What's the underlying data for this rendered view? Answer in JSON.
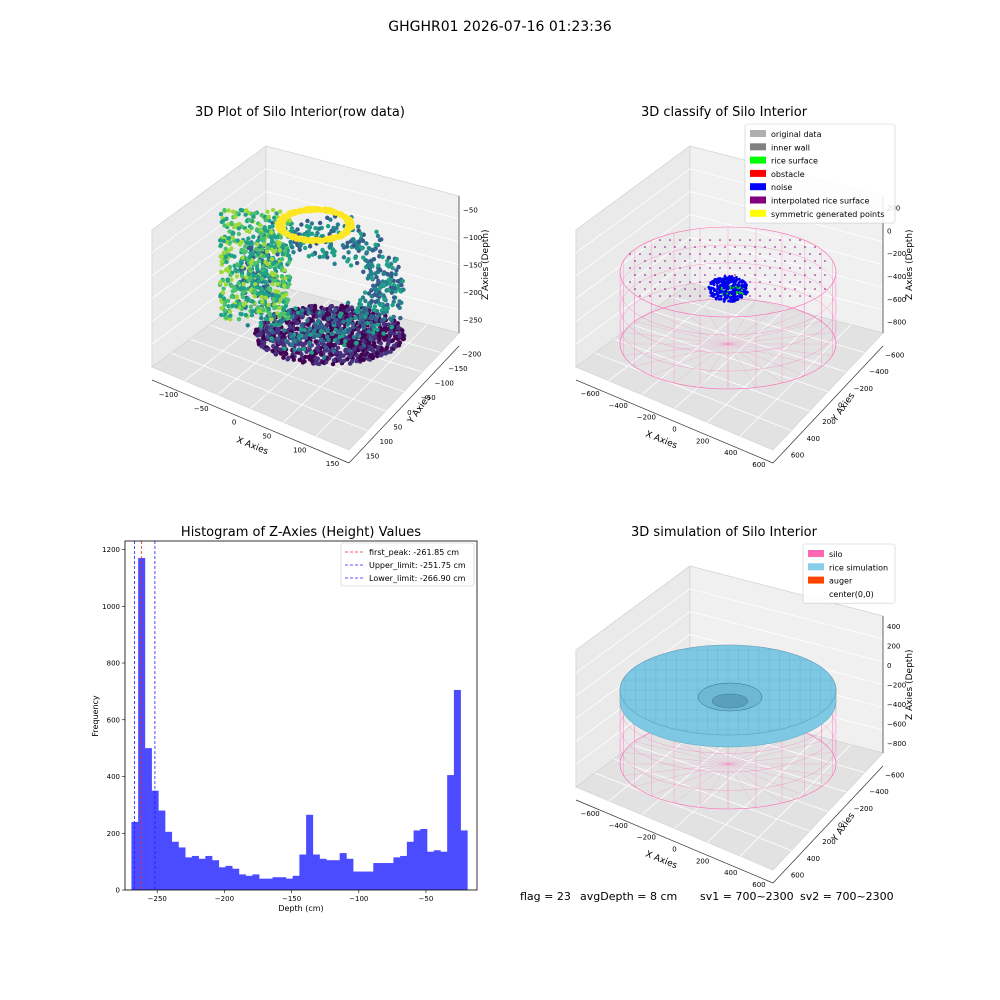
{
  "suptitle": "GHGHR01 2026-07-16 01:23:36",
  "colors": {
    "hist_bar": "#4b4bff",
    "first_peak": "#ff2020",
    "limit_line": "#2020ff",
    "silo": "#ff6eb4",
    "rice": "#7ec8e3",
    "noise": "#0000ee"
  },
  "chart_data": [
    {
      "type": "scatter",
      "subtype": "3d",
      "title": "3D Plot of Silo Interior(row data)",
      "xlabel": "X Axies",
      "ylabel": "Y Axies",
      "zlabel": "Z Axies (Depth)",
      "x_ticks": [
        "−100",
        "−50",
        "0",
        "50",
        "100",
        "150"
      ],
      "y_ticks": [
        "150",
        "100",
        "50",
        "0",
        "−50",
        "−100",
        "−150",
        "−200"
      ],
      "z_ticks": [
        "−50",
        "−100",
        "−150",
        "−200",
        "−250"
      ],
      "xlim": [
        -140,
        155
      ],
      "ylim": [
        -200,
        160
      ],
      "zlim": [
        -280,
        -15
      ],
      "colormap": "viridis"
    },
    {
      "type": "scatter",
      "subtype": "3d",
      "title": "3D classify of Silo Interior",
      "xlabel": "X Axies",
      "ylabel": "Y Axies",
      "zlabel": "Z Axies (Depth)",
      "x_ticks": [
        "−600",
        "−400",
        "−200",
        "0",
        "200",
        "400",
        "600"
      ],
      "y_ticks": [
        "600",
        "400",
        "200",
        "0",
        "−200",
        "−400",
        "−600"
      ],
      "z_ticks": [
        "200",
        "0",
        "−200",
        "−400",
        "−600",
        "−800"
      ],
      "legend_position": "top-right",
      "legend": [
        {
          "label": "original data",
          "color": "#b0b0b0"
        },
        {
          "label": "inner wall",
          "color": "#808080"
        },
        {
          "label": "rice surface",
          "color": "#00ff00"
        },
        {
          "label": "obstacle",
          "color": "#ff0000"
        },
        {
          "label": "noise",
          "color": "#0000ff"
        },
        {
          "label": "interpolated rice surface",
          "color": "#800080"
        },
        {
          "label": "symmetric generated points",
          "color": "#ffff00"
        }
      ]
    },
    {
      "type": "bar",
      "subtype": "histogram",
      "title": "Histogram of Z-Axies (Height) Values",
      "xlabel": "Depth (cm)",
      "ylabel": "Frequency",
      "xlim": [
        -274,
        -12
      ],
      "ylim": [
        0,
        1230
      ],
      "x_ticks": [
        -250,
        -200,
        -150,
        -100,
        -50
      ],
      "y_ticks": [
        0,
        200,
        400,
        600,
        800,
        1000,
        1200
      ],
      "bin_start": -269.2,
      "bin_width": 5.0,
      "values": [
        240,
        1170,
        500,
        350,
        280,
        205,
        170,
        150,
        115,
        120,
        110,
        120,
        105,
        80,
        85,
        75,
        55,
        50,
        55,
        40,
        40,
        45,
        45,
        40,
        50,
        125,
        265,
        125,
        110,
        105,
        105,
        130,
        110,
        65,
        65,
        65,
        95,
        95,
        95,
        115,
        120,
        170,
        210,
        215,
        135,
        140,
        135,
        405,
        705,
        210
      ],
      "vlines": [
        {
          "label": "first_peak: -261.85 cm",
          "x": -261.85,
          "color": "#ff2020"
        },
        {
          "label": "Upper_limit: -251.75 cm",
          "x": -251.75,
          "color": "#2020ff"
        },
        {
          "label": "Lower_limit: -266.90 cm",
          "x": -266.9,
          "color": "#2020ff"
        }
      ],
      "legend_position": "top-right"
    },
    {
      "type": "area",
      "subtype": "3d-surface",
      "title": "3D simulation of Silo Interior",
      "xlabel": "X Axies",
      "ylabel": "Y Axies",
      "zlabel": "Z Axies (Depth)",
      "x_ticks": [
        "−600",
        "−400",
        "−200",
        "0",
        "200",
        "400",
        "600"
      ],
      "y_ticks": [
        "600",
        "400",
        "200",
        "0",
        "−200",
        "−400",
        "−600"
      ],
      "z_ticks": [
        "400",
        "200",
        "0",
        "−200",
        "−400",
        "−600",
        "−800"
      ],
      "legend_position": "top-right",
      "legend": [
        {
          "label": "silo",
          "color": "#ff69b4"
        },
        {
          "label": "rice simulation",
          "color": "#87ceeb"
        },
        {
          "label": "auger",
          "color": "#ff4500"
        },
        {
          "label": "center(0,0)",
          "color": "#ffffff"
        }
      ]
    }
  ],
  "footer": {
    "flag": "flag = 23",
    "avg_depth": "avgDepth = 8 cm",
    "sv1": "sv1 = 700~2300",
    "sv2": "sv2 = 700~2300"
  }
}
